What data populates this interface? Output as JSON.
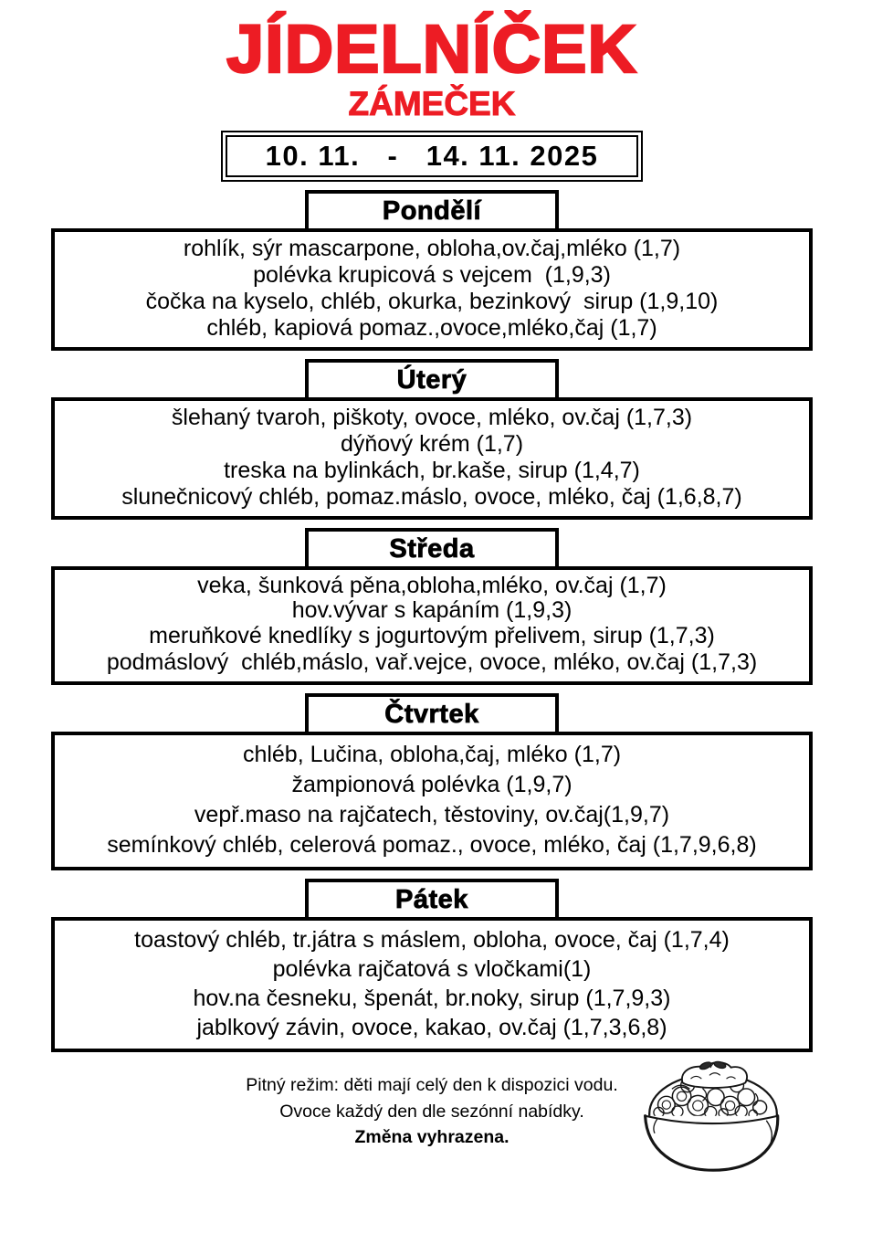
{
  "page": {
    "title": "JÍDELNÍČEK",
    "subtitle": "ZÁMEČEK",
    "date_range": "10. 11.   -   14. 11. 2025",
    "accent_color": "#ed1c24"
  },
  "days": [
    {
      "name": "Pondělí",
      "meals": [
        "rohlík, sýr mascarpone, obloha,ov.čaj,mléko (1,7)",
        "polévka krupicová s vejcem  (1,9,3)",
        "čočka na kyselo, chléb, okurka, bezinkový  sirup (1,9,10)",
        "chléb, kapiová pomaz.,ovoce,mléko,čaj (1,7)"
      ]
    },
    {
      "name": "Úterý",
      "meals": [
        "šlehaný tvaroh, piškoty, ovoce, mléko, ov.čaj (1,7,3)",
        "dýňový krém (1,7)",
        "treska na bylinkách, br.kaše, sirup (1,4,7)",
        "slunečnicový chléb, pomaz.máslo, ovoce, mléko, čaj (1,6,8,7)"
      ]
    },
    {
      "name": "Středa",
      "meals": [
        "veka, šunková pěna,obloha,mléko, ov.čaj (1,7)",
        "hov.vývar s kapáním (1,9,3)",
        "meruňkové knedlíky s jogurtovým přelivem, sirup (1,7,3)",
        "podmáslový  chléb,máslo, vař.vejce, ovoce, mléko, ov.čaj (1,7,3)"
      ]
    },
    {
      "name": "Čtvrtek",
      "meals": [
        "chléb, Lučina, obloha,čaj, mléko (1,7)",
        "žampionová polévka (1,9,7)",
        "vepř.maso na rajčatech, těstoviny, ov.čaj(1,9,7)",
        "semínkový chléb, celerová pomaz., ovoce, mléko, čaj (1,7,9,6,8)"
      ]
    },
    {
      "name": "Pátek",
      "meals": [
        "toastový chléb, tr.játra s máslem, obloha, ovoce, čaj (1,7,4)",
        "polévka rajčatová s vločkami(1)",
        "hov.na česneku, špenát, br.noky, sirup (1,7,9,3)",
        "jablkový závin, ovoce, kakao, ov.čaj (1,7,3,6,8)"
      ]
    }
  ],
  "footer": {
    "notes": [
      "Pitný režim: děti mají celý den k dispozici vodu.",
      "Ovoce každý den dle sezónní nabídky."
    ],
    "bold_note": "Změna vyhrazena."
  },
  "illustration": "noodle-bowl"
}
